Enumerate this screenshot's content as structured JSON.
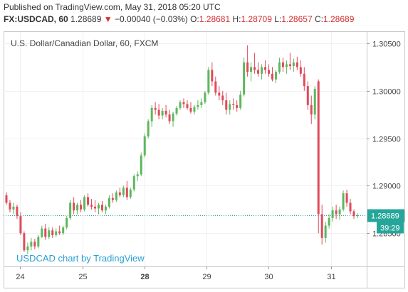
{
  "header": {
    "published": "Published on TradingView.com, May 31, 2018 05:20 UTC",
    "symbol": "FX:USDCAD, 60",
    "last": "1.28689",
    "change_arrow": "▼",
    "change": "−0.00040 (−0.03%)",
    "o_label": "O:",
    "o_value": "1.28681",
    "h_label": "H:",
    "h_value": "1.28709",
    "l_label": "L:",
    "l_value": "1.28657",
    "c_label": "C:",
    "c_value": "1.28689"
  },
  "chart_data": {
    "type": "candlestick",
    "title": "U.S. Dollar/Canadian Dollar, 60, FXCM",
    "watermark": "USDCAD chart by TradingView",
    "ylim": [
      1.2815,
      1.3062
    ],
    "y_ticks": [
      "1.30500",
      "1.30000",
      "1.29500",
      "1.29000",
      "1.28500"
    ],
    "x_ticks": [
      {
        "label": "24",
        "pos": 0.046
      },
      {
        "label": "25",
        "pos": 0.217
      },
      {
        "label": "28",
        "pos": 0.388
      },
      {
        "label": "29",
        "pos": 0.559
      },
      {
        "label": "30",
        "pos": 0.73
      },
      {
        "label": "31",
        "pos": 0.901
      }
    ],
    "current_price": 1.28689,
    "current_price_label": "1.28689",
    "countdown_label": "39:29",
    "colors": {
      "up": "#5cb85c",
      "down": "#e04a5a",
      "price_line": "#26a69a",
      "grid": "#f0f0f0"
    },
    "candles": [
      [
        1.289,
        1.2893,
        1.288,
        1.2882
      ],
      [
        1.2882,
        1.2885,
        1.2872,
        1.2875
      ],
      [
        1.2875,
        1.2882,
        1.287,
        1.2878
      ],
      [
        1.2878,
        1.288,
        1.2865,
        1.2868
      ],
      [
        1.2868,
        1.2872,
        1.2848,
        1.285
      ],
      [
        1.285,
        1.2852,
        1.283,
        1.2832
      ],
      [
        1.2832,
        1.284,
        1.2828,
        1.2836
      ],
      [
        1.2836,
        1.2845,
        1.2832,
        1.2841
      ],
      [
        1.2841,
        1.2844,
        1.2833,
        1.2836
      ],
      [
        1.2836,
        1.2848,
        1.2834,
        1.2846
      ],
      [
        1.2846,
        1.2858,
        1.2845,
        1.2855
      ],
      [
        1.2855,
        1.286,
        1.2843,
        1.2846
      ],
      [
        1.2846,
        1.2856,
        1.2844,
        1.2853
      ],
      [
        1.2853,
        1.2856,
        1.2845,
        1.2848
      ],
      [
        1.2848,
        1.2855,
        1.2846,
        1.2852
      ],
      [
        1.2852,
        1.2858,
        1.2848,
        1.285
      ],
      [
        1.285,
        1.2858,
        1.2848,
        1.2856
      ],
      [
        1.2856,
        1.2868,
        1.2854,
        1.2866
      ],
      [
        1.2866,
        1.2885,
        1.2864,
        1.2882
      ],
      [
        1.2882,
        1.2888,
        1.287,
        1.2874
      ],
      [
        1.2874,
        1.2882,
        1.287,
        1.288
      ],
      [
        1.288,
        1.2885,
        1.2872,
        1.2875
      ],
      [
        1.2875,
        1.289,
        1.2873,
        1.2888
      ],
      [
        1.2888,
        1.2892,
        1.2878,
        1.288
      ],
      [
        1.288,
        1.2886,
        1.2875,
        1.2878
      ],
      [
        1.2878,
        1.2885,
        1.2872,
        1.2876
      ],
      [
        1.2876,
        1.2882,
        1.287,
        1.288
      ],
      [
        1.288,
        1.2884,
        1.2872,
        1.2874
      ],
      [
        1.2874,
        1.288,
        1.287,
        1.2878
      ],
      [
        1.2878,
        1.289,
        1.2876,
        1.2887
      ],
      [
        1.2887,
        1.2892,
        1.2882,
        1.2885
      ],
      [
        1.2885,
        1.2895,
        1.2883,
        1.2893
      ],
      [
        1.2893,
        1.2898,
        1.2888,
        1.289
      ],
      [
        1.289,
        1.29,
        1.2888,
        1.2898
      ],
      [
        1.2898,
        1.2905,
        1.2885,
        1.2888
      ],
      [
        1.2888,
        1.2898,
        1.2886,
        1.2896
      ],
      [
        1.2896,
        1.2912,
        1.2894,
        1.291
      ],
      [
        1.291,
        1.2915,
        1.2905,
        1.2912
      ],
      [
        1.2912,
        1.2935,
        1.291,
        1.2932
      ],
      [
        1.2932,
        1.2955,
        1.293,
        1.2952
      ],
      [
        1.2952,
        1.297,
        1.295,
        1.2968
      ],
      [
        1.2968,
        1.2985,
        1.2962,
        1.2982
      ],
      [
        1.2982,
        1.2988,
        1.2975,
        1.298
      ],
      [
        1.298,
        1.2986,
        1.297,
        1.2974
      ],
      [
        1.2974,
        1.2982,
        1.297,
        1.2979
      ],
      [
        1.2979,
        1.2985,
        1.2972,
        1.2975
      ],
      [
        1.2975,
        1.298,
        1.2965,
        1.2968
      ],
      [
        1.2968,
        1.2978,
        1.2962,
        1.2976
      ],
      [
        1.2976,
        1.2984,
        1.2974,
        1.2982
      ],
      [
        1.2982,
        1.299,
        1.298,
        1.2988
      ],
      [
        1.2988,
        1.2992,
        1.2982,
        1.2986
      ],
      [
        1.2986,
        1.299,
        1.298,
        1.2982
      ],
      [
        1.2982,
        1.2988,
        1.2976,
        1.2978
      ],
      [
        1.2978,
        1.2985,
        1.2975,
        1.2983
      ],
      [
        1.2983,
        1.299,
        1.298,
        1.2985
      ],
      [
        1.2985,
        1.2992,
        1.2982,
        1.2988
      ],
      [
        1.2988,
        1.3,
        1.2986,
        1.2998
      ],
      [
        1.2998,
        1.3025,
        1.2996,
        1.3022
      ],
      [
        1.3022,
        1.303,
        1.3005,
        1.301
      ],
      [
        1.301,
        1.3015,
        1.2995,
        1.2998
      ],
      [
        1.2998,
        1.3005,
        1.299,
        1.2995
      ],
      [
        1.2995,
        1.3,
        1.2985,
        1.299
      ],
      [
        1.299,
        1.2998,
        1.2975,
        1.298
      ],
      [
        1.298,
        1.299,
        1.2975,
        1.2986
      ],
      [
        1.2986,
        1.2992,
        1.298,
        1.2985
      ],
      [
        1.2985,
        1.299,
        1.2978,
        1.2982
      ],
      [
        1.2982,
        1.3,
        1.298,
        1.2996
      ],
      [
        1.2996,
        1.3035,
        1.2994,
        1.303
      ],
      [
        1.303,
        1.3048,
        1.3015,
        1.302
      ],
      [
        1.302,
        1.303,
        1.301,
        1.3025
      ],
      [
        1.3025,
        1.304,
        1.3018,
        1.3022
      ],
      [
        1.3022,
        1.303,
        1.3015,
        1.3018
      ],
      [
        1.3018,
        1.3028,
        1.3012,
        1.3025
      ],
      [
        1.3025,
        1.3032,
        1.3018,
        1.3022
      ],
      [
        1.3022,
        1.3028,
        1.3015,
        1.3018
      ],
      [
        1.3018,
        1.3025,
        1.301,
        1.3012
      ],
      [
        1.3012,
        1.3022,
        1.3008,
        1.302
      ],
      [
        1.302,
        1.3035,
        1.3018,
        1.303
      ],
      [
        1.303,
        1.3035,
        1.302,
        1.3025
      ],
      [
        1.3025,
        1.3032,
        1.3018,
        1.3028
      ],
      [
        1.3028,
        1.304,
        1.3022,
        1.3026
      ],
      [
        1.3026,
        1.3034,
        1.302,
        1.303
      ],
      [
        1.303,
        1.3036,
        1.3022,
        1.3025
      ],
      [
        1.3025,
        1.3032,
        1.3015,
        1.3018
      ],
      [
        1.3018,
        1.3025,
        1.3,
        1.3005
      ],
      [
        1.3005,
        1.301,
        1.298,
        1.2985
      ],
      [
        1.2985,
        1.2995,
        1.2965,
        1.2975
      ],
      [
        1.2975,
        1.3005,
        1.297,
        1.3002
      ],
      [
        1.301,
        1.3012,
        1.285,
        1.287
      ],
      [
        1.287,
        1.288,
        1.2838,
        1.2845
      ],
      [
        1.2845,
        1.2862,
        1.284,
        1.2858
      ],
      [
        1.2858,
        1.287,
        1.2855,
        1.2866
      ],
      [
        1.2866,
        1.2878,
        1.2862,
        1.2874
      ],
      [
        1.2874,
        1.288,
        1.2865,
        1.287
      ],
      [
        1.287,
        1.2878,
        1.2864,
        1.2875
      ],
      [
        1.2875,
        1.2895,
        1.2873,
        1.2892
      ],
      [
        1.2892,
        1.2896,
        1.2878,
        1.2882
      ],
      [
        1.2882,
        1.2886,
        1.287,
        1.2873
      ],
      [
        1.2873,
        1.2875,
        1.2865,
        1.2868
      ],
      [
        1.2868,
        1.2871,
        1.2866,
        1.2869
      ]
    ]
  }
}
